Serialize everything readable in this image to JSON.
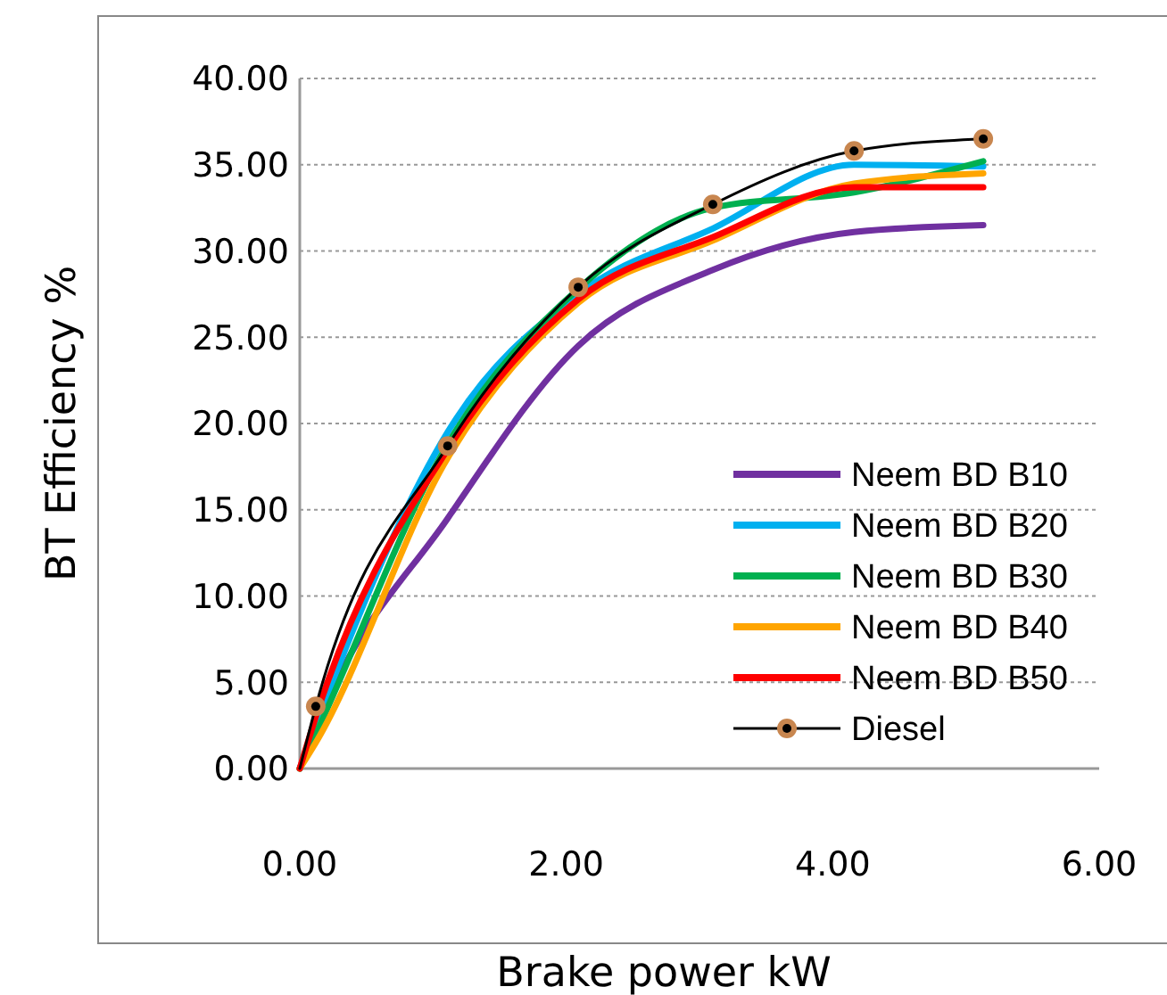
{
  "chart_data": {
    "type": "line",
    "xlabel": "Brake power kW",
    "ylabel": "BT Efficiency %",
    "x": [
      0,
      0.12,
      1.11,
      2.09,
      3.1,
      4.16,
      5.13
    ],
    "series": [
      {
        "name": "Neem BD B10",
        "color": "#7030a0",
        "values": [
          0,
          2.4,
          14.5,
          24.5,
          28.9,
          31.1,
          31.5
        ]
      },
      {
        "name": "Neem BD B20",
        "color": "#00b0f0",
        "values": [
          0,
          2.5,
          19.5,
          27.5,
          31.3,
          35.0,
          34.9
        ]
      },
      {
        "name": "Neem BD B30",
        "color": "#00b050",
        "values": [
          0,
          2,
          18.8,
          27.8,
          32.5,
          33.4,
          35.2
        ]
      },
      {
        "name": "Neem BD B40",
        "color": "#ffa500",
        "values": [
          0,
          1.5,
          18,
          27,
          30.6,
          33.9,
          34.5
        ]
      },
      {
        "name": "Neem BD B50",
        "color": "#ff0000",
        "values": [
          0,
          3,
          18.5,
          27.2,
          30.8,
          33.7,
          33.7
        ]
      },
      {
        "name": "Diesel",
        "color": "#000000",
        "marker": "circle",
        "values": [
          0,
          3.6,
          18.7,
          27.9,
          32.7,
          35.8,
          36.5
        ]
      }
    ],
    "xlim": [
      0,
      6
    ],
    "xticks": [
      {
        "value": 0,
        "label": "0.00"
      },
      {
        "value": 2,
        "label": "2.00"
      },
      {
        "value": 4,
        "label": "4.00"
      },
      {
        "value": 6,
        "label": "6.00"
      }
    ],
    "ylim": [
      0,
      40
    ],
    "yticks": [
      {
        "value": 0,
        "label": "0.00"
      },
      {
        "value": 5,
        "label": "5.00"
      },
      {
        "value": 10,
        "label": "10.00"
      },
      {
        "value": 15,
        "label": "15.00"
      },
      {
        "value": 20,
        "label": "20.00"
      },
      {
        "value": 25,
        "label": "25.00"
      },
      {
        "value": 30,
        "label": "30.00"
      },
      {
        "value": 35,
        "label": "35.00"
      },
      {
        "value": 40,
        "label": "40.00"
      }
    ],
    "grid": "y",
    "legend": "bottom right",
    "marker": "none",
    "line_style": "solid"
  }
}
